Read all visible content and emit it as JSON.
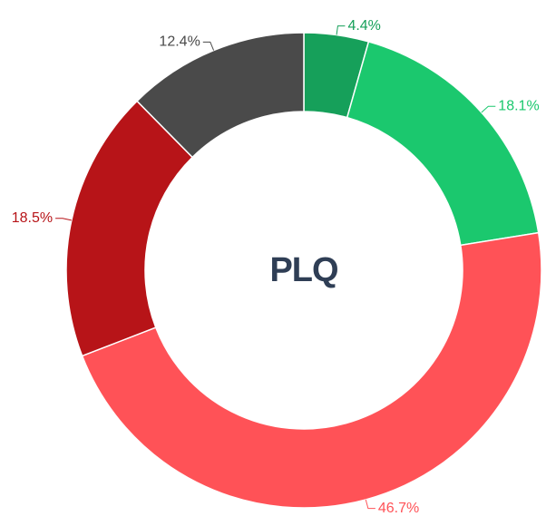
{
  "chart_data": {
    "type": "donut",
    "center_text": "PLQ",
    "values": [
      4.4,
      18.1,
      46.7,
      18.5,
      12.4
    ],
    "value_labels": [
      "4.4%",
      "18.1%",
      "46.7%",
      "18.5%",
      "12.4%"
    ],
    "colors": [
      "#16a05a",
      "#1bc86e",
      "#ff5257",
      "#b71418",
      "#4a4a4a"
    ]
  }
}
